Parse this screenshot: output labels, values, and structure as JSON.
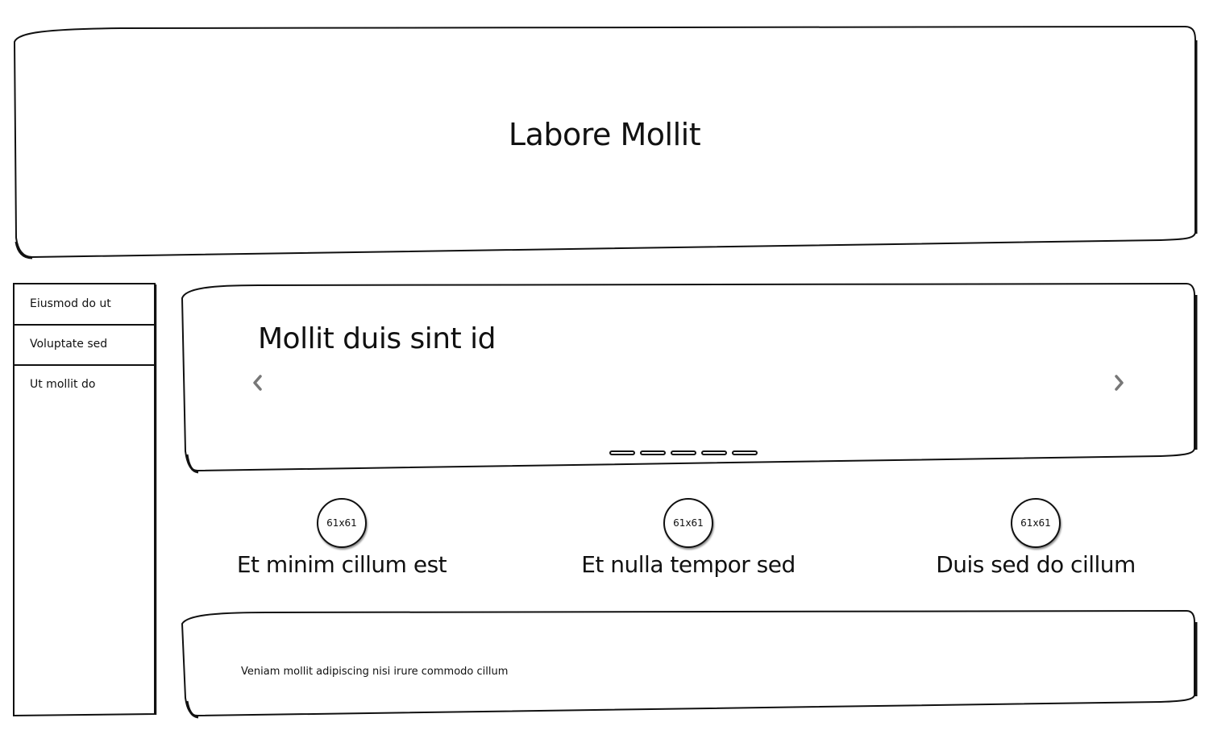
{
  "header": {
    "title": "Labore Mollit"
  },
  "sidebar": {
    "items": [
      {
        "label": "Eiusmod do ut"
      },
      {
        "label": "Voluptate sed"
      },
      {
        "label": "Ut mollit do"
      }
    ]
  },
  "carousel": {
    "heading": "Mollit duis sint id",
    "prev_icon": "chevron-left-icon",
    "next_icon": "chevron-right-icon",
    "indicator_count": 5
  },
  "features": [
    {
      "image_label": "61x61",
      "title": "Et minim cillum est"
    },
    {
      "image_label": "61x61",
      "title": "Et nulla tempor sed"
    },
    {
      "image_label": "61x61",
      "title": "Duis sed do cillum"
    }
  ],
  "footer": {
    "text": "Veniam mollit adipiscing nisi irure commodo cillum"
  },
  "colors": {
    "stroke": "#111111",
    "background": "#ffffff",
    "chevron": "#777777"
  }
}
